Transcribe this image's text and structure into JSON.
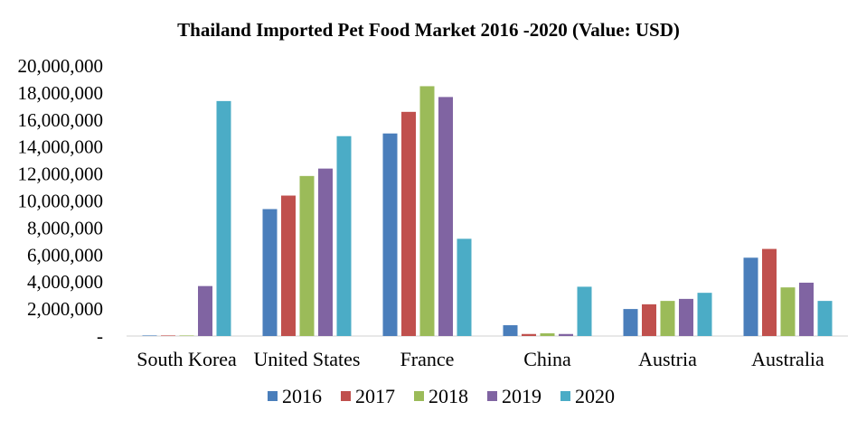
{
  "chart_data": {
    "type": "bar",
    "title": "Thailand Imported Pet Food Market 2016 -2020 (Value: USD)",
    "categories": [
      "South Korea",
      "United States",
      "France",
      "China",
      "Austria",
      "Australia"
    ],
    "series": [
      {
        "name": "2016",
        "color": "#4a7ebb",
        "values": [
          0,
          9400000,
          15000000,
          800000,
          2000000,
          5800000
        ]
      },
      {
        "name": "2017",
        "color": "#c0504d",
        "values": [
          0,
          10400000,
          16600000,
          150000,
          2350000,
          6450000
        ]
      },
      {
        "name": "2018",
        "color": "#9bbb59",
        "values": [
          0,
          11850000,
          18500000,
          200000,
          2600000,
          3600000
        ]
      },
      {
        "name": "2019",
        "color": "#8064a2",
        "values": [
          3700000,
          12400000,
          17700000,
          150000,
          2750000,
          3950000
        ]
      },
      {
        "name": "2020",
        "color": "#4bacc6",
        "values": [
          17400000,
          14800000,
          7200000,
          3650000,
          3200000,
          2600000
        ]
      }
    ],
    "ylim": [
      0,
      20000000
    ],
    "yticks": [
      {
        "value": 0,
        "label": "-"
      },
      {
        "value": 2000000,
        "label": "2,000,000"
      },
      {
        "value": 4000000,
        "label": "4,000,000"
      },
      {
        "value": 6000000,
        "label": "6,000,000"
      },
      {
        "value": 8000000,
        "label": "8,000,000"
      },
      {
        "value": 10000000,
        "label": "10,000,000"
      },
      {
        "value": 12000000,
        "label": "12,000,000"
      },
      {
        "value": 14000000,
        "label": "14,000,000"
      },
      {
        "value": 16000000,
        "label": "16,000,000"
      },
      {
        "value": 18000000,
        "label": "18,000,000"
      },
      {
        "value": 20000000,
        "label": "20,000,000"
      }
    ],
    "xlabel": "",
    "ylabel": "",
    "grid": false,
    "legend": "bottom"
  }
}
